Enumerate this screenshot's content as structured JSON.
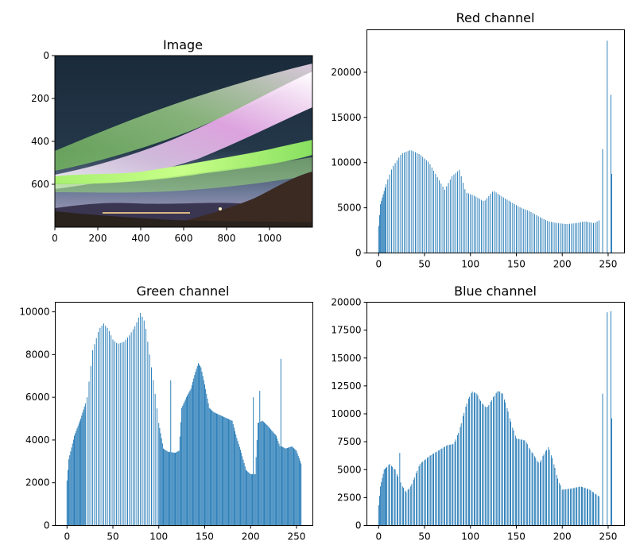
{
  "chart_data": [
    {
      "type": "image",
      "title": "Image",
      "xlim": [
        0,
        1200
      ],
      "ylim": [
        800,
        0
      ],
      "xticks": [
        0,
        200,
        400,
        600,
        800,
        1000
      ],
      "yticks": [
        0,
        200,
        400,
        600
      ],
      "content": "aurora-night-landscape"
    },
    {
      "type": "bar",
      "title": "Red channel",
      "color": "#1f77b4",
      "xlim": [
        -12.8,
        267.8
      ],
      "ylim": [
        0,
        24700
      ],
      "xticks": [
        0,
        50,
        100,
        150,
        200,
        250
      ],
      "yticks": [
        0,
        5000,
        10000,
        15000,
        20000
      ],
      "profile": [
        [
          0,
          3000
        ],
        [
          2,
          5400
        ],
        [
          8,
          7600
        ],
        [
          15,
          9500
        ],
        [
          25,
          11000
        ],
        [
          35,
          11400
        ],
        [
          45,
          10900
        ],
        [
          55,
          10000
        ],
        [
          65,
          8200
        ],
        [
          72,
          7000
        ],
        [
          80,
          8500
        ],
        [
          88,
          9200
        ],
        [
          95,
          6700
        ],
        [
          105,
          6300
        ],
        [
          115,
          5700
        ],
        [
          125,
          6900
        ],
        [
          135,
          6200
        ],
        [
          145,
          5600
        ],
        [
          155,
          5000
        ],
        [
          165,
          4600
        ],
        [
          175,
          4000
        ],
        [
          185,
          3500
        ],
        [
          195,
          3300
        ],
        [
          205,
          3200
        ],
        [
          215,
          3300
        ],
        [
          225,
          3500
        ],
        [
          235,
          3300
        ],
        [
          240,
          3600
        ],
        [
          241,
          0
        ],
        [
          243,
          0
        ],
        [
          244,
          11500
        ],
        [
          245,
          0
        ],
        [
          248,
          0
        ],
        [
          249,
          23500
        ],
        [
          250,
          0
        ],
        [
          252,
          0
        ],
        [
          253,
          17500
        ],
        [
          255,
          0
        ]
      ],
      "gaps": {
        "start": 8,
        "end": 240,
        "every": 2
      }
    },
    {
      "type": "bar",
      "title": "Green channel",
      "color": "#1f77b4",
      "xlim": [
        -12.8,
        267.8
      ],
      "ylim": [
        0,
        10450
      ],
      "xticks": [
        0,
        50,
        100,
        150,
        200,
        250
      ],
      "yticks": [
        0,
        2000,
        4000,
        6000,
        8000,
        10000
      ],
      "profile": [
        [
          0,
          2100
        ],
        [
          2,
          3100
        ],
        [
          8,
          4200
        ],
        [
          15,
          5000
        ],
        [
          22,
          6000
        ],
        [
          28,
          8200
        ],
        [
          35,
          9200
        ],
        [
          40,
          9450
        ],
        [
          45,
          9200
        ],
        [
          50,
          8700
        ],
        [
          55,
          8500
        ],
        [
          62,
          8600
        ],
        [
          68,
          8900
        ],
        [
          75,
          9400
        ],
        [
          80,
          9950
        ],
        [
          85,
          9500
        ],
        [
          90,
          8000
        ],
        [
          95,
          6500
        ],
        [
          100,
          4800
        ],
        [
          105,
          3600
        ],
        [
          110,
          3450
        ],
        [
          118,
          3400
        ],
        [
          122,
          3500
        ],
        [
          125,
          5500
        ],
        [
          130,
          6000
        ],
        [
          135,
          6400
        ],
        [
          140,
          7200
        ],
        [
          143,
          7600
        ],
        [
          146,
          7400
        ],
        [
          150,
          6600
        ],
        [
          155,
          5500
        ],
        [
          160,
          5300
        ],
        [
          170,
          5100
        ],
        [
          180,
          4900
        ],
        [
          185,
          4100
        ],
        [
          190,
          3400
        ],
        [
          195,
          2600
        ],
        [
          200,
          2400
        ],
        [
          205,
          2400
        ],
        [
          208,
          4800
        ],
        [
          213,
          4900
        ],
        [
          218,
          4700
        ],
        [
          222,
          4500
        ],
        [
          228,
          4200
        ],
        [
          232,
          3700
        ],
        [
          233,
          7800
        ],
        [
          234,
          3700
        ],
        [
          238,
          3600
        ],
        [
          245,
          3700
        ],
        [
          250,
          3500
        ],
        [
          255,
          2900
        ]
      ],
      "spikes": [
        [
          113,
          6800
        ],
        [
          203,
          6000
        ],
        [
          210,
          6300
        ],
        [
          233,
          7800
        ]
      ],
      "gaps": {
        "start": 20,
        "end": 100,
        "every": 2
      }
    },
    {
      "type": "bar",
      "title": "Blue channel",
      "color": "#1f77b4",
      "xlim": [
        -12.8,
        267.8
      ],
      "ylim": [
        0,
        20000
      ],
      "xticks": [
        0,
        50,
        100,
        150,
        200,
        250
      ],
      "yticks": [
        0,
        2500,
        5000,
        7500,
        10000,
        12500,
        15000,
        17500,
        20000
      ],
      "profile": [
        [
          0,
          1800
        ],
        [
          2,
          3500
        ],
        [
          6,
          5000
        ],
        [
          12,
          5500
        ],
        [
          18,
          5000
        ],
        [
          22,
          4200
        ],
        [
          26,
          3500
        ],
        [
          30,
          3000
        ],
        [
          35,
          3500
        ],
        [
          40,
          4500
        ],
        [
          45,
          5500
        ],
        [
          55,
          6200
        ],
        [
          65,
          6700
        ],
        [
          75,
          7200
        ],
        [
          82,
          7300
        ],
        [
          88,
          8500
        ],
        [
          92,
          9800
        ],
        [
          97,
          11200
        ],
        [
          102,
          12000
        ],
        [
          107,
          11800
        ],
        [
          112,
          11000
        ],
        [
          118,
          10500
        ],
        [
          125,
          11500
        ],
        [
          130,
          12100
        ],
        [
          135,
          11800
        ],
        [
          140,
          10500
        ],
        [
          145,
          9000
        ],
        [
          150,
          7800
        ],
        [
          155,
          7700
        ],
        [
          160,
          7600
        ],
        [
          165,
          6800
        ],
        [
          170,
          6200
        ],
        [
          175,
          5500
        ],
        [
          180,
          6400
        ],
        [
          185,
          7000
        ],
        [
          190,
          5800
        ],
        [
          195,
          4200
        ],
        [
          200,
          3200
        ],
        [
          210,
          3300
        ],
        [
          220,
          3500
        ],
        [
          230,
          3200
        ],
        [
          240,
          2600
        ],
        [
          241,
          0
        ],
        [
          243,
          0
        ],
        [
          244,
          11800
        ],
        [
          245,
          0
        ],
        [
          248,
          0
        ],
        [
          249,
          19100
        ],
        [
          250,
          0
        ],
        [
          252,
          0
        ],
        [
          253,
          19200
        ],
        [
          255,
          0
        ]
      ],
      "spikes": [
        [
          23,
          6500
        ]
      ],
      "gaps": {
        "start": 10,
        "end": 240,
        "every": 3
      }
    }
  ]
}
